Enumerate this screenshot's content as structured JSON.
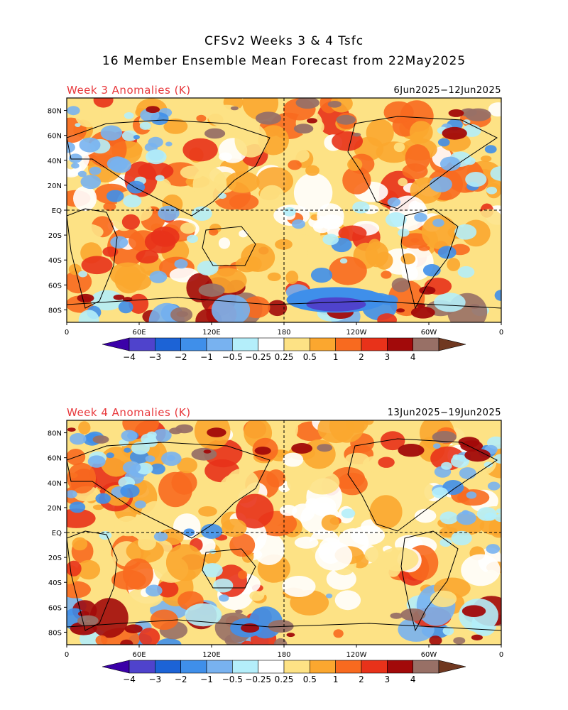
{
  "title": {
    "line1": "CFSv2 Weeks 3 & 4 Tsfc",
    "line2": "16 Member Ensemble Mean Forecast from 22May2025"
  },
  "panels": [
    {
      "label": "Week 3 Anomalies (K)",
      "dates": "6Jun2025−12Jun2025"
    },
    {
      "label": "Week 4 Anomalies (K)",
      "dates": "13Jun2025−19Jun2025"
    }
  ],
  "axes": {
    "lat_labels": [
      "80N",
      "60N",
      "40N",
      "20N",
      "EQ",
      "20S",
      "40S",
      "60S",
      "80S"
    ],
    "lon_labels": [
      "0",
      "60E",
      "120E",
      "180",
      "120W",
      "60W",
      "0"
    ]
  },
  "colorbar": {
    "levels": [
      "−4",
      "−3",
      "−2",
      "−1",
      "−0.5",
      "−0.25",
      "0.25",
      "0.5",
      "1",
      "2",
      "3",
      "4"
    ],
    "colors": [
      "#3b00a8",
      "#4f43cc",
      "#1c63d6",
      "#3f8fea",
      "#78b2f0",
      "#b4eefa",
      "#ffffff",
      "#fde285",
      "#fba72f",
      "#f86a1f",
      "#e8321a",
      "#a20a0a",
      "#987066",
      "#703820"
    ]
  },
  "map_colors": {
    "land_outline": "#000000",
    "ocean_neutral": "#ffffff"
  }
}
